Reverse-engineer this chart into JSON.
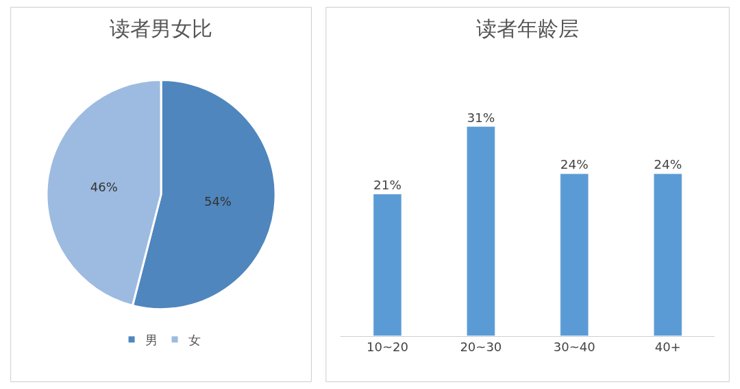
{
  "chart_data": [
    {
      "type": "pie",
      "title": "读者男女比",
      "categories": [
        "男",
        "女"
      ],
      "values": [
        54,
        46
      ],
      "colors": [
        "#4f86bd",
        "#9dbbe0"
      ],
      "value_labels": [
        "54%",
        "46%"
      ],
      "legend": "bottom"
    },
    {
      "type": "bar",
      "title": "读者年龄层",
      "categories": [
        "10~20",
        "20~30",
        "30~40",
        "40+"
      ],
      "values": [
        21,
        31,
        24,
        24
      ],
      "color": "#5b9bd5",
      "value_labels": [
        "21%",
        "31%",
        "24%",
        "24%"
      ]
    }
  ]
}
